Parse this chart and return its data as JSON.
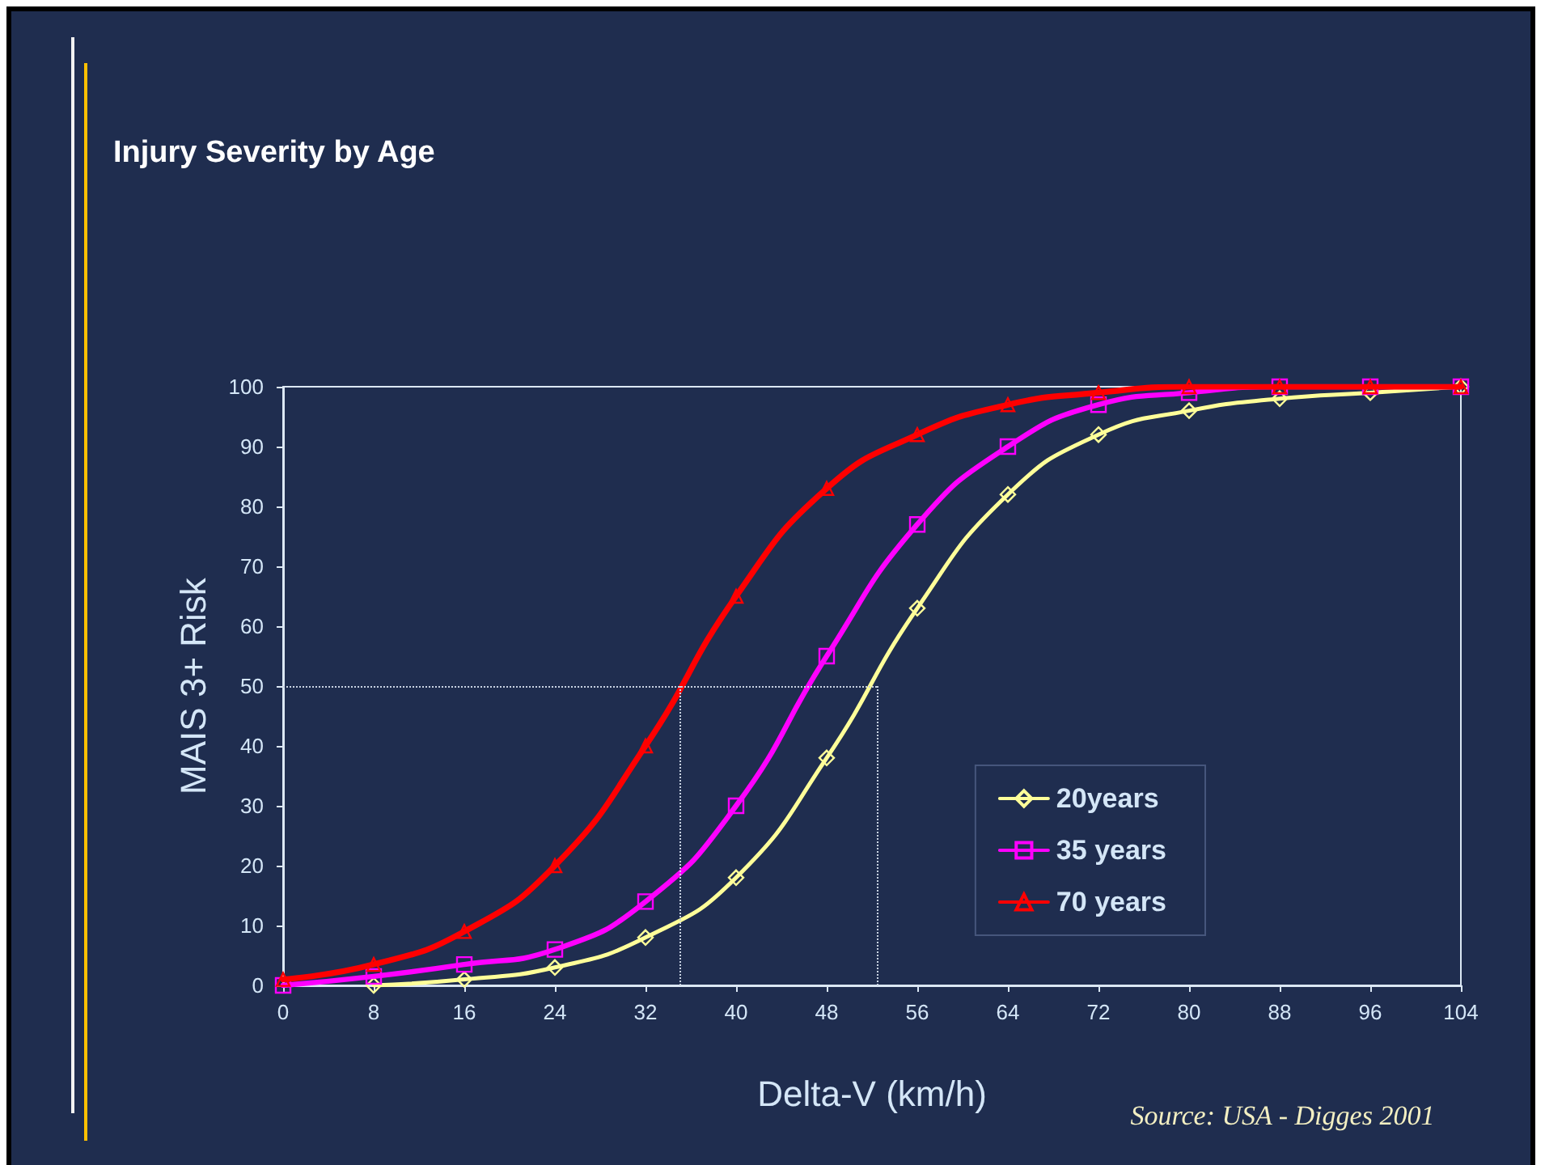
{
  "chart_data": {
    "type": "line",
    "title": "Injury Severity by Age",
    "xlabel": "Delta-V (km/h)",
    "ylabel": "MAIS 3+ Risk",
    "annotations": [
      "Source: USA - Digges 2001"
    ],
    "x": [
      0,
      8,
      16,
      24,
      32,
      40,
      48,
      56,
      64,
      72,
      80,
      88,
      96,
      104
    ],
    "series": [
      {
        "name": "20years",
        "color": "#ffff99",
        "marker": "diamond",
        "values": [
          null,
          0,
          1,
          3,
          8,
          18,
          38,
          63,
          82,
          92,
          96,
          98,
          99,
          100
        ]
      },
      {
        "name": "35 years",
        "color": "#ff00ff",
        "marker": "square",
        "values": [
          0,
          1.5,
          3.5,
          6,
          14,
          30,
          55,
          77,
          90,
          97,
          99,
          100,
          100,
          100
        ]
      },
      {
        "name": "70 years",
        "color": "#ff0000",
        "marker": "triangle",
        "values": [
          1,
          3.5,
          9,
          20,
          40,
          65,
          83,
          92,
          97,
          99,
          100,
          100,
          100,
          100
        ]
      }
    ],
    "xlim": [
      0,
      104
    ],
    "xticks": [
      0,
      8,
      16,
      24,
      32,
      40,
      48,
      56,
      64,
      72,
      80,
      88,
      96,
      104
    ],
    "ylim": [
      0,
      100
    ],
    "yticks": [
      0,
      10,
      20,
      30,
      40,
      50,
      60,
      70,
      80,
      90,
      100
    ],
    "ref_lines": [
      {
        "axis": "y",
        "value": 50
      },
      {
        "axis": "x",
        "value": 35
      },
      {
        "axis": "x",
        "value": 52.5
      }
    ],
    "legend": "bottom right"
  }
}
